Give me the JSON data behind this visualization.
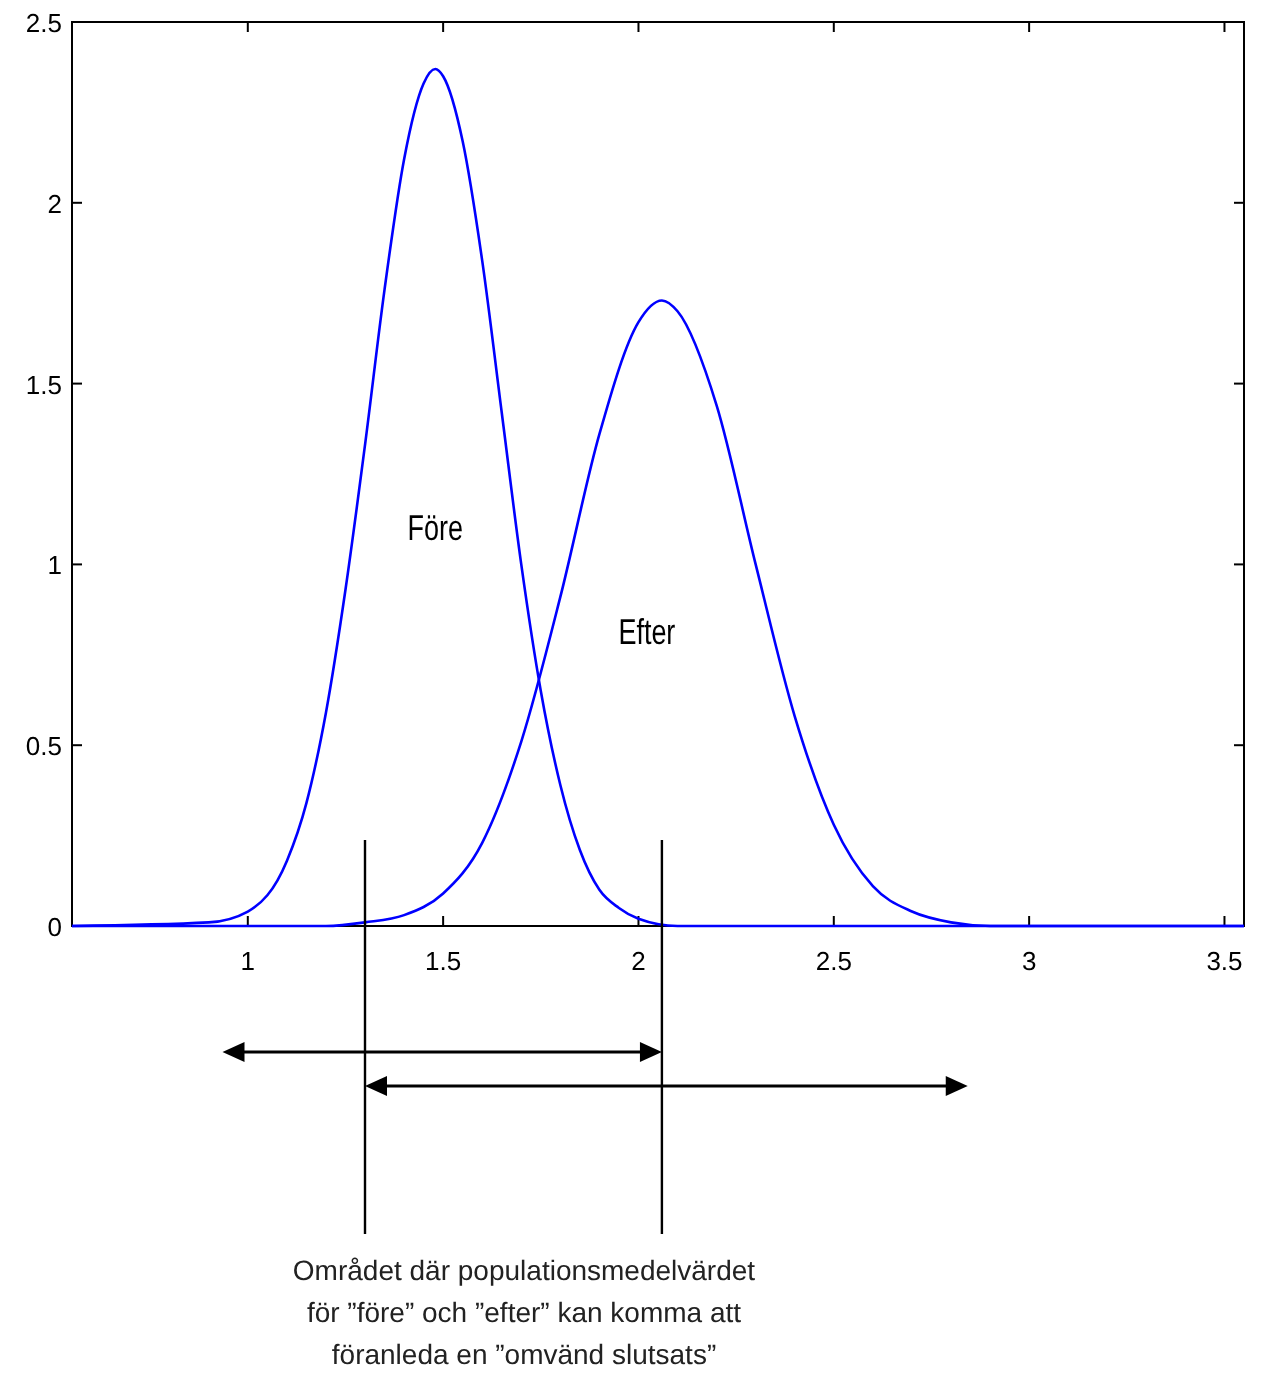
{
  "chart_data": {
    "type": "line",
    "xlim": [
      0.55,
      3.55
    ],
    "xticks": [
      1,
      1.5,
      2,
      2.5,
      3,
      3.5
    ],
    "ylim": [
      0,
      2.5
    ],
    "yticks": [
      0,
      0.5,
      1,
      1.5,
      2,
      2.5
    ],
    "grid": false,
    "marker": "none",
    "line_style": "solid",
    "series": [
      {
        "name": "Före",
        "color": "#0000ff",
        "x": [
          0.55,
          0.9,
          1.0,
          1.1,
          1.15,
          1.2,
          1.25,
          1.3,
          1.35,
          1.4,
          1.45,
          1.48,
          1.5,
          1.55,
          1.6,
          1.65,
          1.7,
          1.75,
          1.8,
          1.85,
          1.9,
          1.95,
          2.0,
          2.1,
          3.55
        ],
        "values": [
          0,
          0.01,
          0.04,
          0.18,
          0.34,
          0.59,
          0.93,
          1.33,
          1.76,
          2.12,
          2.33,
          2.37,
          2.35,
          2.17,
          1.84,
          1.42,
          1.0,
          0.65,
          0.39,
          0.21,
          0.1,
          0.05,
          0.02,
          0,
          0
        ]
      },
      {
        "name": "Efter",
        "color": "#0000ff",
        "x": [
          0.55,
          1.2,
          1.3,
          1.4,
          1.5,
          1.6,
          1.7,
          1.8,
          1.9,
          2.0,
          2.06,
          2.1,
          2.2,
          2.3,
          2.4,
          2.5,
          2.6,
          2.7,
          2.8,
          2.9,
          3.55
        ],
        "values": [
          0,
          0,
          0.01,
          0.03,
          0.09,
          0.23,
          0.51,
          0.91,
          1.36,
          1.67,
          1.73,
          1.7,
          1.44,
          1.0,
          0.58,
          0.28,
          0.11,
          0.04,
          0.01,
          0,
          0
        ]
      }
    ],
    "ref_lines": [
      {
        "axis": "x",
        "value": 1.3,
        "color": "#000000"
      },
      {
        "axis": "x",
        "value": 2.06,
        "color": "#000000"
      }
    ],
    "annotations": [
      "Området där populationsmedelvärdet för ”före” och ”efter” kan komma att föranleda en ”omvänd slutsats”"
    ]
  }
}
